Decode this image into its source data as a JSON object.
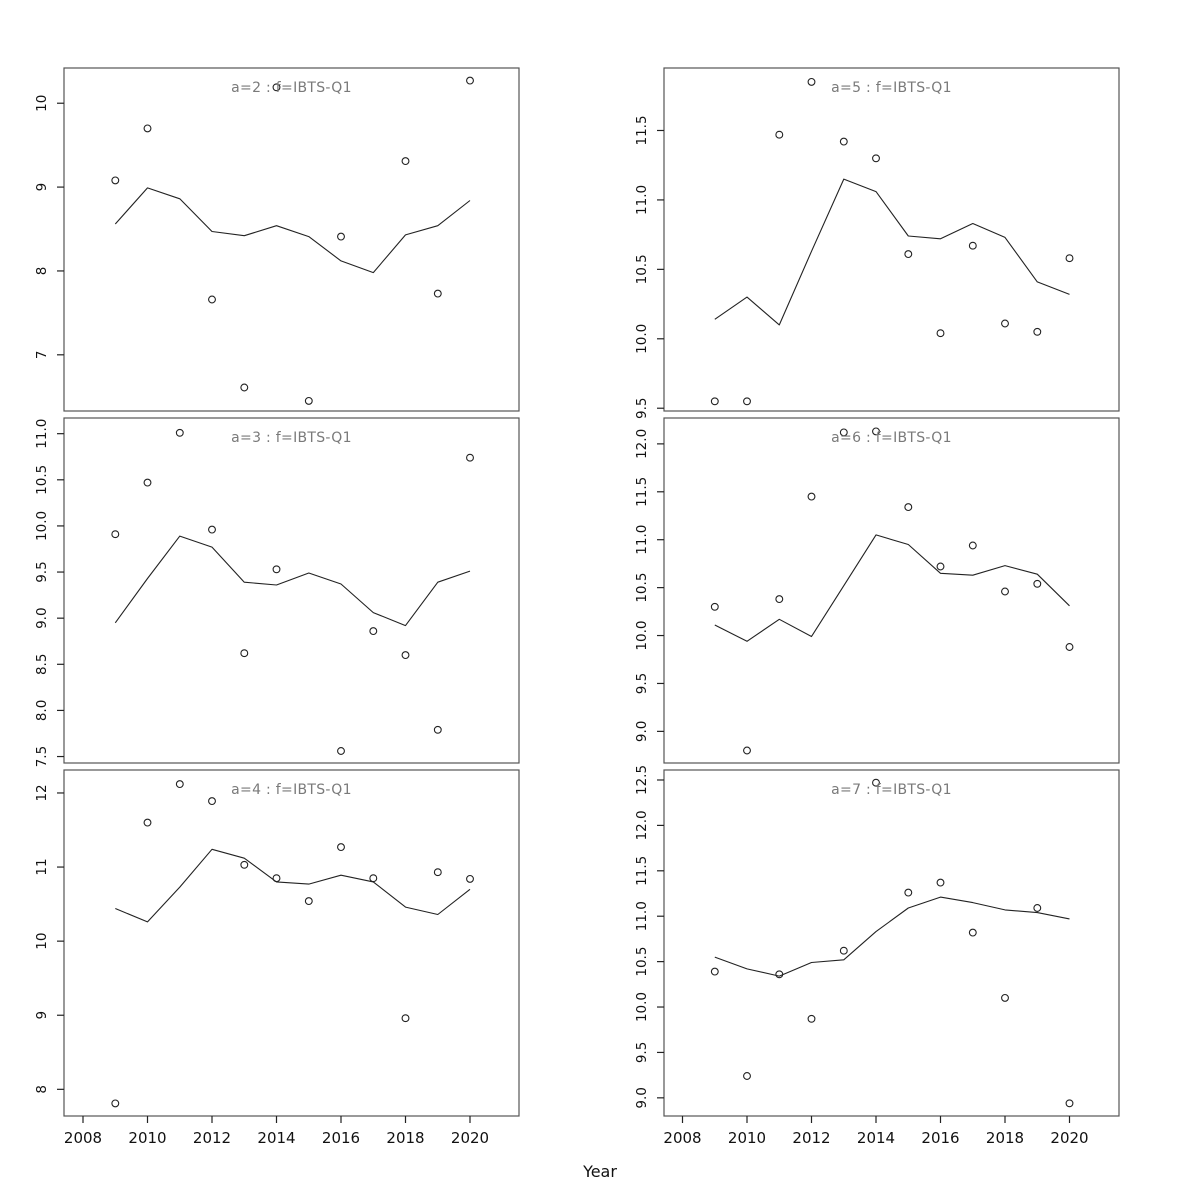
{
  "figure": {
    "xlabel": "Year",
    "colors": {
      "point_stroke": "#222222",
      "line_stroke": "#222222",
      "border": "#555555",
      "tick": "#222222",
      "title_gray": "#7a7a7a"
    }
  },
  "chart_data": {
    "type": "scatter",
    "layout": "2x3 trellis, scatter points with fitted line per panel",
    "xlabel": "Year",
    "xlim": [
      2007.4,
      2021.5
    ],
    "xticks": [
      2008,
      2010,
      2012,
      2014,
      2016,
      2018,
      2020
    ],
    "xticklabels": [
      "2008",
      "2010",
      "2012",
      "2014",
      "2016",
      "2018",
      "2020"
    ],
    "line_years": [
      2009,
      2010,
      2011,
      2012,
      2013,
      2014,
      2015,
      2016,
      2017,
      2018,
      2019,
      2020
    ],
    "panels": [
      {
        "title": "a=2 : f=IBTS-Q1",
        "ylim": [
          6.33,
          10.42
        ],
        "yticks": [
          7,
          8,
          9,
          10
        ],
        "yticklabels": [
          "7",
          "8",
          "9",
          "10"
        ],
        "points": {
          "x": [
            2009,
            2010,
            2012,
            2013,
            2014,
            2015,
            2016,
            2018,
            2019,
            2020
          ],
          "y": [
            9.08,
            9.7,
            7.66,
            6.61,
            10.19,
            6.45,
            8.41,
            9.31,
            7.73,
            10.27
          ]
        },
        "line": [
          8.56,
          8.99,
          8.86,
          8.47,
          8.42,
          8.54,
          8.41,
          8.12,
          7.98,
          8.43,
          8.54,
          8.84
        ]
      },
      {
        "title": "a=3 : f=IBTS-Q1",
        "ylim": [
          7.43,
          11.17
        ],
        "yticks": [
          7.5,
          8.0,
          8.5,
          9.0,
          9.5,
          10.0,
          10.5,
          11.0
        ],
        "yticklabels": [
          "7.5",
          "8.0",
          "8.5",
          "9.0",
          "9.5",
          "10.0",
          "10.5",
          "11.0"
        ],
        "points": {
          "x": [
            2009,
            2010,
            2011,
            2012,
            2013,
            2014,
            2016,
            2017,
            2018,
            2019,
            2020
          ],
          "y": [
            9.91,
            10.47,
            11.01,
            9.96,
            8.62,
            9.53,
            7.56,
            8.86,
            8.6,
            7.79,
            10.74
          ]
        },
        "line": [
          8.95,
          9.43,
          9.89,
          9.77,
          9.39,
          9.36,
          9.49,
          9.37,
          9.06,
          8.92,
          9.39,
          9.51
        ]
      },
      {
        "title": "a=4 : f=IBTS-Q1",
        "ylim": [
          7.64,
          12.31
        ],
        "yticks": [
          8,
          9,
          10,
          11,
          12
        ],
        "yticklabels": [
          "8",
          "9",
          "10",
          "11",
          "12"
        ],
        "points": {
          "x": [
            2009,
            2010,
            2011,
            2012,
            2013,
            2014,
            2015,
            2016,
            2017,
            2018,
            2019,
            2020
          ],
          "y": [
            7.81,
            11.6,
            12.12,
            11.89,
            11.03,
            10.85,
            10.54,
            11.27,
            10.85,
            8.96,
            10.93,
            10.84
          ]
        },
        "line": [
          10.44,
          10.26,
          10.73,
          11.24,
          11.12,
          10.8,
          10.77,
          10.89,
          10.8,
          10.46,
          10.36,
          10.7
        ]
      },
      {
        "title": "a=5 : f=IBTS-Q1",
        "ylim": [
          9.48,
          11.95
        ],
        "yticks": [
          9.5,
          10.0,
          10.5,
          11.0,
          11.5
        ],
        "yticklabels": [
          "9.5",
          "10.0",
          "10.5",
          "11.0",
          "11.5"
        ],
        "points": {
          "x": [
            2009,
            2010,
            2011,
            2012,
            2013,
            2014,
            2015,
            2016,
            2017,
            2018,
            2019,
            2020
          ],
          "y": [
            9.55,
            9.55,
            11.47,
            11.85,
            11.42,
            11.3,
            10.61,
            10.04,
            10.67,
            10.11,
            10.05,
            10.58
          ]
        },
        "line": [
          10.14,
          10.3,
          10.1,
          10.63,
          11.15,
          11.06,
          10.74,
          10.72,
          10.83,
          10.73,
          10.41,
          10.32
        ]
      },
      {
        "title": "a=6 : f=IBTS-Q1",
        "ylim": [
          8.67,
          12.27
        ],
        "yticks": [
          9.0,
          9.5,
          10.0,
          10.5,
          11.0,
          11.5,
          12.0
        ],
        "yticklabels": [
          "9.0",
          "9.5",
          "10.0",
          "10.5",
          "11.0",
          "11.5",
          "12.0"
        ],
        "points": {
          "x": [
            2009,
            2010,
            2011,
            2012,
            2013,
            2014,
            2015,
            2016,
            2017,
            2018,
            2019,
            2020
          ],
          "y": [
            10.3,
            8.8,
            10.38,
            11.45,
            12.12,
            12.13,
            11.34,
            10.72,
            10.94,
            10.46,
            10.54,
            9.88
          ]
        },
        "line": [
          10.11,
          9.94,
          10.17,
          9.99,
          10.52,
          11.05,
          10.95,
          10.65,
          10.63,
          10.73,
          10.64,
          10.31
        ]
      },
      {
        "title": "a=7 : f=IBTS-Q1",
        "ylim": [
          8.8,
          12.61
        ],
        "yticks": [
          9.0,
          9.5,
          10.0,
          10.5,
          11.0,
          11.5,
          12.0,
          12.5
        ],
        "yticklabels": [
          "9.0",
          "9.5",
          "10.0",
          "10.5",
          "11.0",
          "11.5",
          "12.0",
          "12.5"
        ],
        "points": {
          "x": [
            2009,
            2010,
            2011,
            2012,
            2013,
            2014,
            2015,
            2016,
            2017,
            2018,
            2019,
            2020
          ],
          "y": [
            10.39,
            9.24,
            10.36,
            9.87,
            10.62,
            12.47,
            11.26,
            11.37,
            10.82,
            10.1,
            11.09,
            8.94
          ]
        },
        "line": [
          10.55,
          10.42,
          10.34,
          10.49,
          10.52,
          10.83,
          11.09,
          11.21,
          11.15,
          11.07,
          11.04,
          10.97
        ]
      }
    ]
  }
}
